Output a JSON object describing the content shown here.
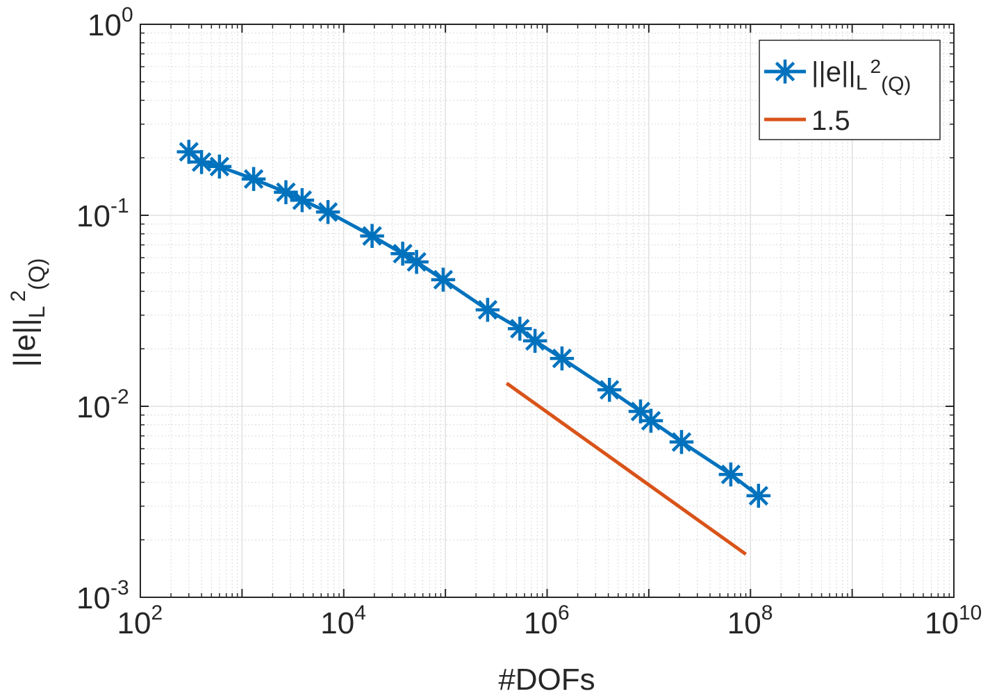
{
  "chart_data": {
    "type": "line",
    "xscale": "log",
    "yscale": "log",
    "xlim": [
      100,
      10000000000
    ],
    "ylim": [
      0.001,
      1
    ],
    "grid": true,
    "minor_grid": true,
    "xlabel": "#DOFs",
    "ylabel": {
      "base": "||e||",
      "sub": "L",
      "sup": "2",
      "sub2": "(Q)"
    },
    "x_ticks": [
      {
        "value": 100,
        "base": "10",
        "exp": "2"
      },
      {
        "value": 10000,
        "base": "10",
        "exp": "4"
      },
      {
        "value": 1000000,
        "base": "10",
        "exp": "6"
      },
      {
        "value": 100000000,
        "base": "10",
        "exp": "8"
      },
      {
        "value": 10000000000,
        "base": "10",
        "exp": "10"
      }
    ],
    "y_ticks": [
      {
        "value": 0.001,
        "base": "10",
        "exp": "-3"
      },
      {
        "value": 0.01,
        "base": "10",
        "exp": "-2"
      },
      {
        "value": 0.1,
        "base": "10",
        "exp": "-1"
      },
      {
        "value": 1,
        "base": "10",
        "exp": "0"
      }
    ],
    "legend_position": "top-right",
    "series": [
      {
        "name": "||e||_{L^2(Q)}",
        "legend": {
          "base": "||e||",
          "sub": "L",
          "sup": "2",
          "sub2": "(Q)"
        },
        "color": "#0072BD",
        "marker": "asterisk",
        "x": [
          300,
          400,
          600,
          1300,
          2700,
          3900,
          7000,
          19000,
          38000,
          52000,
          95000,
          260000,
          540000,
          760000,
          1400000,
          4100000,
          8300000,
          10500000,
          21000000,
          64000000,
          120000000
        ],
        "y": [
          0.215,
          0.19,
          0.18,
          0.155,
          0.132,
          0.12,
          0.104,
          0.078,
          0.063,
          0.057,
          0.046,
          0.032,
          0.0255,
          0.022,
          0.0178,
          0.0122,
          0.0094,
          0.0084,
          0.0065,
          0.0044,
          0.0034
        ]
      },
      {
        "name": "1.5",
        "legend": {
          "base": "1.5"
        },
        "color": "#D95319",
        "marker": "none",
        "x": [
          400000,
          90000000
        ],
        "y": [
          0.0132,
          0.00168
        ]
      }
    ]
  }
}
